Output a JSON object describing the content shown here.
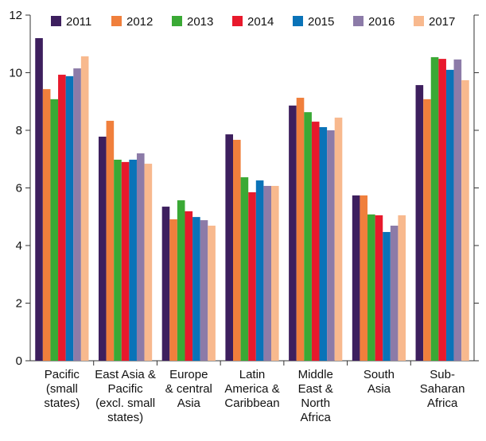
{
  "chart_data": {
    "type": "bar",
    "categories": [
      [
        "Pacific",
        "(small",
        "states)"
      ],
      [
        "East Asia &",
        "Pacific",
        "(excl. small",
        "states)"
      ],
      [
        "Europe",
        "& central",
        "Asia"
      ],
      [
        "Latin",
        "America &",
        "Caribbean"
      ],
      [
        "Middle",
        "East &",
        "North",
        "Africa"
      ],
      [
        "South",
        "Asia"
      ],
      [
        "Sub-",
        "Saharan",
        "Africa"
      ]
    ],
    "series": [
      {
        "name": "2011",
        "color": "#3d1f5e",
        "values": [
          11.2,
          7.78,
          5.35,
          7.86,
          8.86,
          5.74,
          9.57
        ]
      },
      {
        "name": "2012",
        "color": "#f07f3c",
        "values": [
          9.43,
          8.33,
          4.91,
          7.67,
          9.13,
          5.74,
          9.08
        ]
      },
      {
        "name": "2013",
        "color": "#3aa935",
        "values": [
          9.08,
          6.98,
          5.57,
          6.37,
          8.63,
          5.08,
          10.54
        ]
      },
      {
        "name": "2014",
        "color": "#e8192c",
        "values": [
          9.93,
          6.9,
          5.19,
          5.85,
          8.3,
          5.05,
          10.48
        ]
      },
      {
        "name": "2015",
        "color": "#0a73b8",
        "values": [
          9.88,
          6.98,
          4.99,
          6.26,
          8.11,
          4.47,
          10.1
        ]
      },
      {
        "name": "2016",
        "color": "#8c7ba8",
        "values": [
          10.15,
          7.2,
          4.88,
          6.07,
          8.0,
          4.69,
          10.46
        ]
      },
      {
        "name": "2017",
        "color": "#f8b98e",
        "values": [
          10.57,
          6.84,
          4.69,
          6.07,
          8.44,
          5.05,
          9.74
        ]
      }
    ],
    "ylim": [
      0,
      12
    ],
    "yticks": [
      0,
      2,
      4,
      6,
      8,
      10,
      12
    ],
    "legend": "top"
  }
}
